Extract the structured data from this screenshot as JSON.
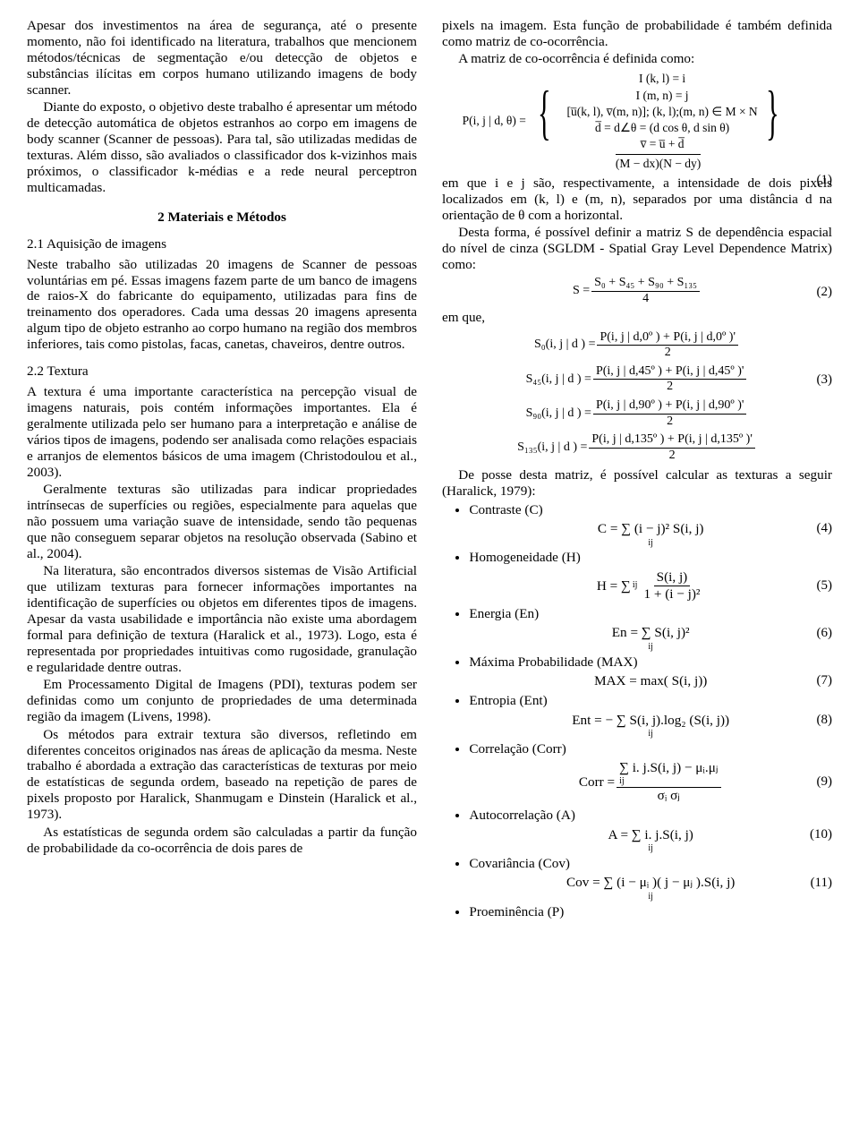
{
  "left": {
    "p1": "Apesar dos investimentos na área de segurança, até o presente momento, não foi identificado na literatura, trabalhos que mencionem métodos/técnicas de segmentação e/ou detecção de objetos e substâncias ilícitas em corpos humano utilizando imagens de body scanner.",
    "p2": "Diante do exposto, o objetivo deste trabalho é apresentar um método de detecção automática de objetos estranhos ao corpo em imagens de body scanner (Scanner de pessoas). Para tal, são utilizadas medidas de texturas. Além disso, são avaliados o classificador dos k-vizinhos mais próximos, o classificador k-médias e a rede neural perceptron multicamadas.",
    "section": "2  Materiais e Métodos",
    "sub21": "2.1  Aquisição de imagens",
    "p3": "Neste trabalho são utilizadas 20 imagens de Scanner de pessoas voluntárias em pé. Essas imagens fazem parte de um banco de imagens de raios-X do fabricante do equipamento, utilizadas para fins de treinamento dos operadores. Cada uma dessas 20 imagens apresenta algum tipo de objeto estranho ao corpo humano na região dos membros inferiores, tais como pistolas, facas, canetas, chaveiros, dentre outros.",
    "sub22": "2.2  Textura",
    "p4": "A textura é uma importante característica na percepção visual de imagens naturais, pois contém informações importantes. Ela é geralmente utilizada pelo ser humano para a interpretação e análise de vários tipos de imagens, podendo ser analisada como relações espaciais e arranjos de elementos básicos de uma imagem (Christodoulou et al., 2003).",
    "p5": "Geralmente texturas são utilizadas para indicar propriedades intrínsecas de superfícies ou regiões, especialmente para aquelas que não possuem uma variação suave de intensidade, sendo tão pequenas que não conseguem separar objetos na resolução observada (Sabino et al., 2004).",
    "p6": "Na literatura, são encontrados diversos sistemas de Visão Artificial que utilizam texturas para fornecer informações importantes na identificação de superfícies ou objetos em diferentes tipos de imagens. Apesar da vasta usabilidade e importância não existe uma abordagem formal para definição de textura (Haralick et al., 1973). Logo, esta é representada por propriedades intuitivas como rugosidade, granulação e regularidade dentre outras.",
    "p7": "Em Processamento Digital de Imagens (PDI), texturas podem ser definidas como um conjunto de propriedades de uma determinada região da imagem (Livens, 1998).",
    "p8": "Os métodos para extrair textura são diversos, refletindo em diferentes conceitos originados nas áreas de aplicação da mesma. Neste trabalho é abordada a extração das características de texturas por meio de estatísticas de segunda ordem, baseado na repetição de pares de pixels proposto por Haralick, Shanmugam e Dinstein (Haralick et al., 1973).",
    "p9": "As estatísticas de segunda ordem são calculadas a partir da função de probabilidade da co-ocorrência de dois pares de"
  },
  "right": {
    "p1": "pixels na imagem. Esta função de probabilidade é também definida como matriz de co-ocorrência.",
    "p2": "A matriz de co-ocorrência é definida como:",
    "eq1": {
      "lhs": "P(i, j | d, θ) =",
      "l1": "I (k, l) = i",
      "l2": "I (m, n) = j",
      "l3": "[u̅(k, l), v̅(m, n)];   (k, l);(m, n) ∈ M × N",
      "l4": "d̅ = d∠θ = (d cos θ, d sin θ)",
      "l5": "v̅ = u̅ + d̅",
      "den": "(M − dx)(N − dy)",
      "num": "(1)"
    },
    "p3": "em que i e j são, respectivamente, a intensidade de dois pixels localizados em (k, l) e (m, n), separados por uma distância d na orientação de θ com a horizontal.",
    "p4": "Desta forma, é possível definir a matriz S de dependência espacial do nível de cinza (SGLDM - Spatial Gray Level Dependence Matrix) como:",
    "eq2": {
      "lhs": "S =",
      "num": "S₀ + S₄₅ + S₉₀ + S₁₃₅",
      "den": "4",
      "n": "(2)"
    },
    "emque": "em que,",
    "eq3a": {
      "lhs": "S₀(i, j | d ) =",
      "num": "P(i, j | d,0º ) + P(i, j | d,0º )'",
      "den": "2"
    },
    "eq3b": {
      "lhs": "S₄₅(i, j | d ) =",
      "num": "P(i, j | d,45º ) + P(i, j | d,45º )'",
      "den": "2",
      "n": "(3)"
    },
    "eq3c": {
      "lhs": "S₉₀(i, j | d ) =",
      "num": "P(i, j | d,90º ) + P(i, j | d,90º )'",
      "den": "2"
    },
    "eq3d": {
      "lhs": "S₁₃₅(i, j | d ) =",
      "num": "P(i, j | d,135º ) + P(i, j | d,135º )'",
      "den": "2"
    },
    "p5": "De posse desta matriz, é possível calcular as texturas a seguir (Haralick, 1979):",
    "feat": {
      "c": {
        "label": "Contraste (C)",
        "eq": "C = ∑ (i − j)² S(i, j)",
        "sub": "ij",
        "n": "(4)"
      },
      "h": {
        "label": "Homogeneidade (H)",
        "eq": "H = ∑",
        "frac_num": "S(i, j)",
        "frac_den": "1 + (i − j)²",
        "sub": "ij",
        "n": "(5)"
      },
      "en": {
        "label": "Energia (En)",
        "eq": "En = ∑ S(i, j)²",
        "sub": "ij",
        "n": "(6)"
      },
      "max": {
        "label": "Máxima Probabilidade (MAX)",
        "eq": "MAX = max( S(i, j))",
        "n": "(7)"
      },
      "ent": {
        "label": "Entropia (Ent)",
        "eq": "Ent = − ∑ S(i, j).log₂ (S(i, j))",
        "sub": "ij",
        "n": "(8)"
      },
      "corr": {
        "label": "Correlação (Corr)",
        "eq": "Corr =",
        "frac_num": "∑ i. j.S(i, j) − μᵢ.μⱼ",
        "frac_den": "σᵢ σⱼ",
        "sub": "ij",
        "n": "(9)"
      },
      "a": {
        "label": "Autocorrelação (A)",
        "eq": "A = ∑ i. j.S(i, j)",
        "sub": "ij",
        "n": "(10)"
      },
      "cov": {
        "label": "Covariância (Cov)",
        "eq": "Cov = ∑ (i − μᵢ )( j − μⱼ ).S(i, j)",
        "sub": "ij",
        "n": "(11)"
      },
      "p": {
        "label": "Proeminência (P)"
      }
    }
  }
}
